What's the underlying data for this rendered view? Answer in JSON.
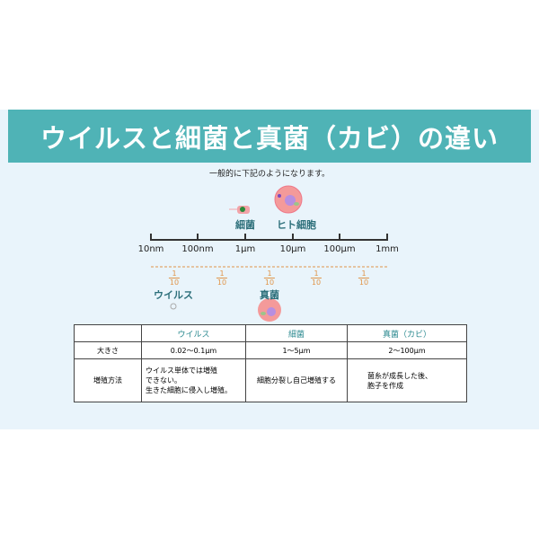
{
  "title": "ウイルスと細菌と真菌（カビ）の違い",
  "subtitle": "一般的に下記のようになります。",
  "scale": {
    "ticks": [
      "10nm",
      "100nm",
      "1μm",
      "10μm",
      "100μm",
      "1mm"
    ],
    "fraction_num": "1",
    "fraction_den": "10"
  },
  "labels": {
    "bacteria": "細菌",
    "human_cell": "ヒト細胞",
    "virus": "ウイルス",
    "fungus": "真菌"
  },
  "table": {
    "headers": [
      "",
      "ウイルス",
      "細菌",
      "真菌（カビ）"
    ],
    "rows": [
      [
        "大きさ",
        "0.02〜0.1μm",
        "1〜5μm",
        "2〜100μm"
      ],
      [
        "増殖方法",
        "ウイルス単体では増殖\nできない。\n生きた細胞に侵入し増殖。",
        "細胞分裂し自己増殖する",
        "菌糸が成長した後、\n胞子を作成"
      ]
    ]
  },
  "colors": {
    "banner": "#4fb3b6",
    "panel": "#e9f4fb",
    "label": "#2c6f7a",
    "fraction": "#e0954a"
  }
}
